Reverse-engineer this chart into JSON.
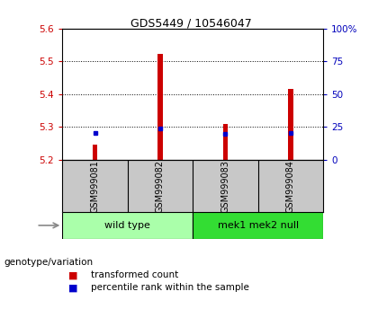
{
  "title": "GDS5449 / 10546047",
  "samples": [
    "GSM999081",
    "GSM999082",
    "GSM999083",
    "GSM999084"
  ],
  "transformed_counts": [
    5.245,
    5.522,
    5.31,
    5.415
  ],
  "percentile_ranks": [
    5.283,
    5.295,
    5.278,
    5.283
  ],
  "ylim_left": [
    5.2,
    5.6
  ],
  "yticks_left": [
    5.2,
    5.3,
    5.4,
    5.5,
    5.6
  ],
  "ylim_right": [
    0,
    100
  ],
  "yticks_right": [
    0,
    25,
    50,
    75,
    100
  ],
  "ytick_labels_right": [
    "0",
    "25",
    "50",
    "75",
    "100%"
  ],
  "bar_color": "#cc0000",
  "percentile_color": "#0000cc",
  "groups": [
    {
      "label": "wild type",
      "indices": [
        0,
        1
      ],
      "color": "#aaffaa"
    },
    {
      "label": "mek1 mek2 null",
      "indices": [
        2,
        3
      ],
      "color": "#33dd33"
    }
  ],
  "genotype_label": "genotype/variation",
  "legend_items": [
    {
      "color": "#cc0000",
      "label": "transformed count"
    },
    {
      "color": "#0000cc",
      "label": "percentile rank within the sample"
    }
  ],
  "background_color": "#ffffff",
  "left_tick_color": "#cc0000",
  "right_tick_color": "#0000bb",
  "bar_width": 0.08,
  "gray_cell_color": "#c8c8c8"
}
